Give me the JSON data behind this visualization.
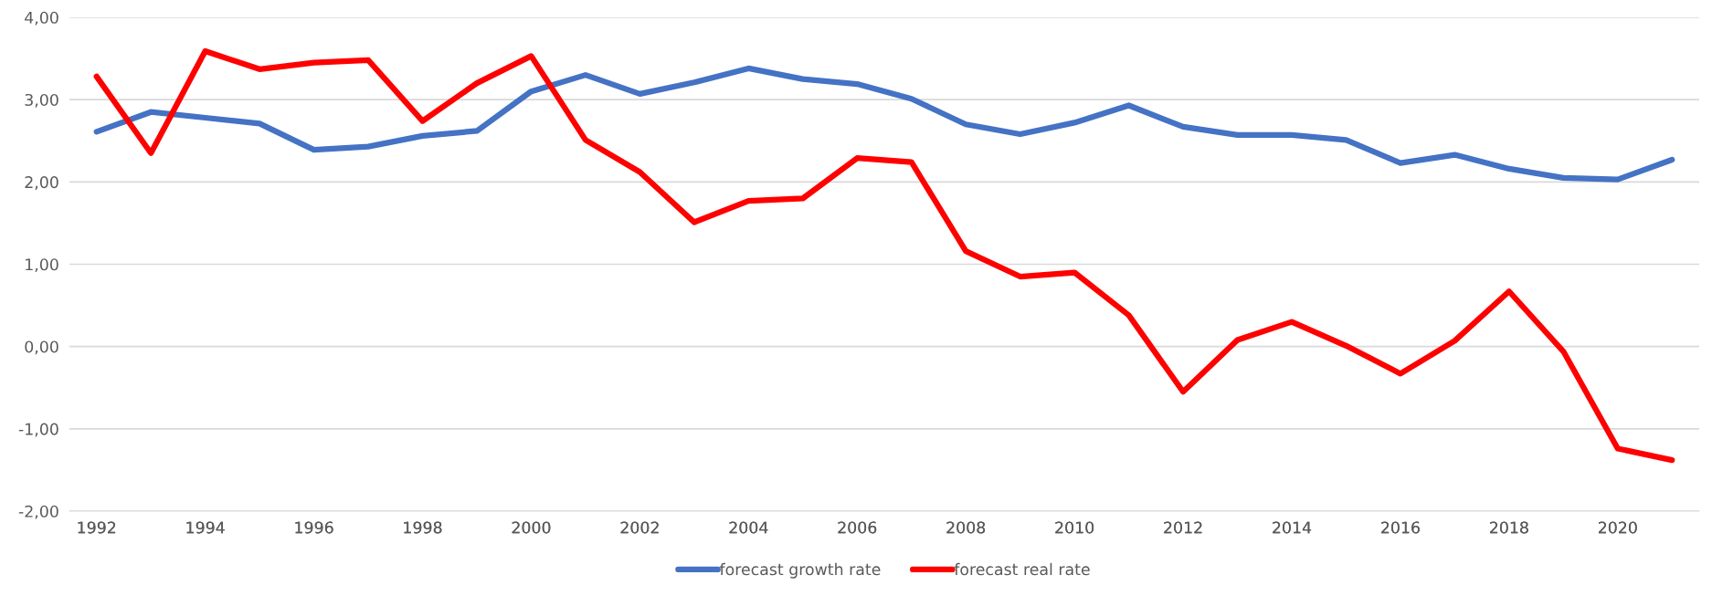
{
  "chart_data": {
    "type": "line",
    "x": [
      1992,
      1993,
      1994,
      1995,
      1996,
      1997,
      1998,
      1999,
      2000,
      2001,
      2002,
      2003,
      2004,
      2005,
      2006,
      2007,
      2008,
      2009,
      2010,
      2011,
      2012,
      2013,
      2014,
      2015,
      2016,
      2017,
      2018,
      2019,
      2020,
      2021
    ],
    "series": [
      {
        "name": "forecast growth rate",
        "color": "#4472c4",
        "values": [
          2.61,
          2.85,
          2.78,
          2.71,
          2.39,
          2.43,
          2.56,
          2.62,
          3.1,
          3.3,
          3.07,
          3.21,
          3.38,
          3.25,
          3.19,
          3.01,
          2.7,
          2.58,
          2.72,
          2.93,
          2.67,
          2.57,
          2.57,
          2.51,
          2.23,
          2.33,
          2.16,
          2.05,
          2.03,
          2.27
        ]
      },
      {
        "name": "forecast real rate",
        "color": "#ff0000",
        "values": [
          3.28,
          2.35,
          3.59,
          3.37,
          3.45,
          3.48,
          2.74,
          3.2,
          3.53,
          2.51,
          2.12,
          1.51,
          1.77,
          1.8,
          2.29,
          2.24,
          1.16,
          0.85,
          0.9,
          0.38,
          -0.55,
          0.08,
          0.3,
          0.01,
          -0.33,
          0.07,
          0.67,
          -0.06,
          -1.24,
          -1.38
        ]
      }
    ],
    "xlim": [
      1991.5,
      2021.5
    ],
    "xticks": [
      1992,
      1994,
      1996,
      1998,
      2000,
      2002,
      2004,
      2006,
      2008,
      2010,
      2012,
      2014,
      2016,
      2018,
      2020
    ],
    "ylim": [
      -2,
      4
    ],
    "yticks": [
      {
        "value": -2,
        "label": "-2,00"
      },
      {
        "value": -1,
        "label": "-1,00"
      },
      {
        "value": 0,
        "label": "0,00"
      },
      {
        "value": 1,
        "label": "1,00"
      },
      {
        "value": 2,
        "label": "2,00"
      },
      {
        "value": 3,
        "label": "3,00"
      },
      {
        "value": 4,
        "label": "4,00"
      }
    ],
    "grid": "y",
    "legend": "bottom",
    "marker": "none",
    "line_style": "solid"
  }
}
